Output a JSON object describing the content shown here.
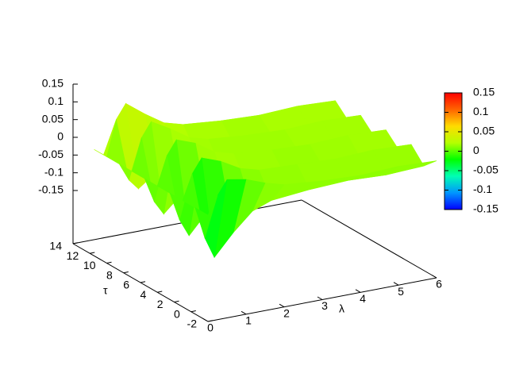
{
  "chart_data": {
    "type": "surface",
    "xlabel": "λ",
    "ylabel": "τ",
    "xlim": [
      0,
      6
    ],
    "ylim": [
      -2,
      14
    ],
    "zlim": [
      -0.15,
      0.15
    ],
    "xticks": [
      0,
      1,
      2,
      3,
      4,
      5,
      6
    ],
    "yticks": [
      -2,
      0,
      2,
      4,
      6,
      8,
      10,
      12,
      14
    ],
    "zticks": [
      -0.15,
      -0.1,
      -0.05,
      0,
      0.05,
      0.1,
      0.15
    ],
    "cbticks": [
      -0.15,
      -0.1,
      -0.05,
      0,
      0.05,
      0.1,
      0.15
    ],
    "colormap": [
      "#0000ff",
      "#0096ff",
      "#00ffb4",
      "#00ff00",
      "#b4ff00",
      "#ffdc00",
      "#ff6400",
      "#ff0000"
    ],
    "x": [
      0,
      0.25,
      0.5,
      1,
      1.5,
      2,
      3,
      4,
      5,
      6
    ],
    "y": [
      -2,
      -0.5,
      1,
      2.5,
      4,
      5.5,
      7,
      8.5,
      10,
      11.5
    ],
    "z": [
      [
        0,
        0.05,
        0.09,
        0.08,
        0.06,
        0.045,
        0.035,
        0.03,
        0.035,
        0.03
      ],
      [
        0,
        -0.09,
        -0.15,
        -0.09,
        -0.04,
        -0.02,
        -0.01,
        -0.005,
        -0.01,
        -0.005
      ],
      [
        0,
        0.07,
        0.11,
        0.09,
        0.06,
        0.045,
        0.04,
        0.035,
        0.04,
        0.035
      ],
      [
        0,
        -0.08,
        -0.13,
        -0.07,
        -0.03,
        -0.015,
        -0.01,
        -0.005,
        -0.005,
        0
      ],
      [
        0,
        0.08,
        0.12,
        0.1,
        0.065,
        0.05,
        0.04,
        0.035,
        0.04,
        0.035
      ],
      [
        0,
        -0.07,
        -0.11,
        -0.06,
        -0.03,
        -0.015,
        -0.01,
        0,
        -0.005,
        0
      ],
      [
        0,
        0.09,
        0.13,
        0.1,
        0.065,
        0.05,
        0.04,
        0.035,
        0.04,
        0.035
      ],
      [
        0,
        -0.05,
        -0.08,
        -0.04,
        -0.02,
        -0.01,
        -0.005,
        0,
        0,
        0
      ],
      [
        0,
        0.1,
        0.14,
        0.1,
        0.065,
        0.05,
        0.04,
        0.035,
        0.04,
        0.035
      ],
      [
        0,
        -0.02,
        -0.03,
        -0.015,
        -0.01,
        -0.005,
        0,
        0,
        0,
        0
      ]
    ]
  }
}
